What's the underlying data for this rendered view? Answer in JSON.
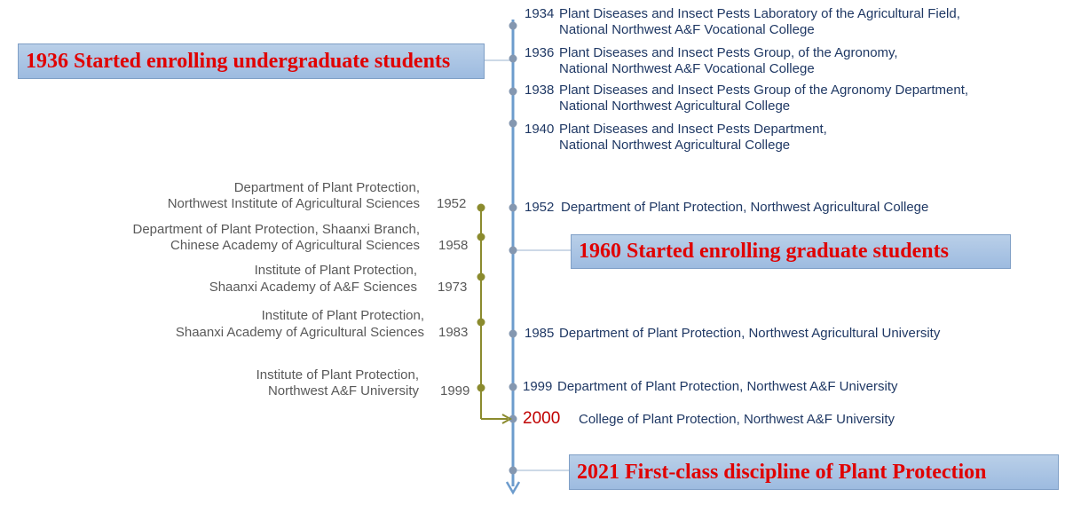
{
  "timeline": {
    "events": [
      {
        "year": "1934",
        "line1": "Plant Diseases and Insect Pests Laboratory of the Agricultural Field,",
        "line2": "National Northwest A&F Vocational College"
      },
      {
        "year": "1936",
        "line1": "Plant Diseases and Insect Pests Group, of the Agronomy,",
        "line2": "National Northwest A&F Vocational College"
      },
      {
        "year": "1938",
        "line1": "Plant Diseases and Insect Pests Group of the Agronomy Department,",
        "line2": "National Northwest Agricultural College"
      },
      {
        "year": "1940",
        "line1": "Plant Diseases and Insect Pests Department,",
        "line2": "National Northwest Agricultural College"
      },
      {
        "year": "1952",
        "line1": "Department of Plant Protection, Northwest Agricultural College"
      },
      {
        "year": "1985",
        "line1": "Department of Plant Protection, Northwest Agricultural University"
      },
      {
        "year": "1999",
        "line1": "Department of Plant Protection, Northwest A&F University"
      },
      {
        "year": "2000",
        "line1": "College of Plant Protection, Northwest A&F University"
      }
    ]
  },
  "branch": {
    "events": [
      {
        "year": "1952",
        "line1": "Department of Plant Protection,",
        "line2": "Northwest Institute of Agricultural Sciences"
      },
      {
        "year": "1958",
        "line1": "Department of Plant Protection, Shaanxi Branch,",
        "line2": "Chinese Academy of Agricultural Sciences"
      },
      {
        "year": "1973",
        "line1": "Institute of Plant Protection,",
        "line2": "Shaanxi Academy of A&F Sciences"
      },
      {
        "year": "1983",
        "line1": "Institute of Plant Protection,",
        "line2": "Shaanxi Academy of Agricultural Sciences"
      },
      {
        "year": "1999",
        "line1": "Institute of Plant Protection,",
        "line2": "Northwest A&F University"
      }
    ]
  },
  "callouts": {
    "c1936": "1936 Started enrolling undergraduate students",
    "c1960": "1960  Started enrolling graduate students",
    "c2021": "2021  First-class  discipline  of  Plant  Protection"
  },
  "colors": {
    "main_line": "#6d9ccd",
    "main_dot": "#8497b0",
    "branch_line": "#8b8b2e",
    "text_main": "#1f3864",
    "text_branch": "#595959",
    "callout_text": "#e00000",
    "highlight_year": "#c00000"
  }
}
